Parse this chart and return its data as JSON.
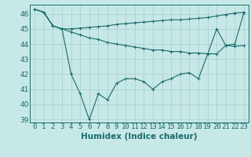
{
  "xlabel": "Humidex (Indice chaleur)",
  "x": [
    0,
    1,
    2,
    3,
    4,
    5,
    6,
    7,
    8,
    9,
    10,
    11,
    12,
    13,
    14,
    15,
    16,
    17,
    18,
    19,
    20,
    21,
    22,
    23
  ],
  "line1": [
    46.3,
    46.1,
    45.2,
    45.0,
    45.0,
    45.05,
    45.1,
    45.15,
    45.2,
    45.3,
    45.35,
    45.4,
    45.45,
    45.5,
    45.55,
    45.6,
    45.6,
    45.65,
    45.7,
    45.75,
    45.85,
    45.95,
    46.05,
    46.1
  ],
  "line2": [
    46.3,
    46.1,
    45.2,
    45.0,
    44.8,
    44.6,
    44.4,
    44.3,
    44.1,
    44.0,
    43.9,
    43.8,
    43.7,
    43.6,
    43.6,
    43.5,
    43.5,
    43.4,
    43.4,
    43.35,
    43.35,
    43.9,
    43.85,
    43.9
  ],
  "line3": [
    46.3,
    46.1,
    45.2,
    45.0,
    42.0,
    40.7,
    39.0,
    40.7,
    40.3,
    41.4,
    41.7,
    41.7,
    41.5,
    41.0,
    41.5,
    41.7,
    42.0,
    42.1,
    41.7,
    43.3,
    45.0,
    43.9,
    44.0,
    46.1
  ],
  "bg_color": "#c6e8e6",
  "line_color": "#1a6b6b",
  "grid_color": "#a8cece",
  "ylim": [
    38.8,
    46.6
  ],
  "yticks": [
    39,
    40,
    41,
    42,
    43,
    44,
    45,
    46
  ],
  "tick_fontsize": 6.5,
  "label_fontsize": 7.5
}
